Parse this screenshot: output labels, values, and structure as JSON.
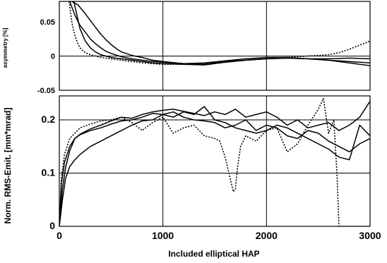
{
  "chart_data": [
    {
      "type": "line",
      "panel": "top",
      "ylabel": "asymmetry [%]",
      "xlim": [
        0,
        3000
      ],
      "ylim": [
        -0.05,
        0.08
      ],
      "yticks": [
        {
          "value": 0.05,
          "label": "0.05"
        },
        {
          "value": 0,
          "label": "0"
        },
        {
          "value": -0.05,
          "label": "-0.05"
        }
      ],
      "x_gridlines": [
        1000,
        2000
      ],
      "y_gridlines": [
        0
      ],
      "series": [
        {
          "style": "solid",
          "x": [
            100,
            150,
            200,
            250,
            300,
            350,
            400,
            450,
            500,
            600,
            700,
            800,
            900,
            1000,
            1200,
            1400,
            1600,
            1800,
            2000,
            2200,
            2400,
            2600,
            2800,
            3000
          ],
          "y": [
            0.08,
            0.06,
            0.045,
            0.035,
            0.025,
            0.018,
            0.012,
            0.007,
            0.004,
            -0.001,
            -0.004,
            -0.006,
            -0.008,
            -0.009,
            -0.011,
            -0.012,
            -0.008,
            -0.006,
            -0.004,
            -0.003,
            -0.004,
            -0.006,
            -0.008,
            -0.01
          ]
        },
        {
          "style": "solid",
          "x": [
            120,
            180,
            250,
            300,
            350,
            400,
            450,
            500,
            550,
            600,
            700,
            800,
            900,
            1000,
            1200,
            1400,
            1600,
            1800,
            2000,
            2200,
            2400,
            2600,
            2800,
            3000
          ],
          "y": [
            0.08,
            0.075,
            0.062,
            0.052,
            0.042,
            0.032,
            0.024,
            0.017,
            0.011,
            0.006,
            0.001,
            -0.002,
            -0.006,
            -0.008,
            -0.011,
            -0.01,
            -0.007,
            -0.004,
            -0.002,
            -0.002,
            -0.004,
            -0.004,
            -0.003,
            -0.004
          ]
        },
        {
          "style": "solid",
          "x": [
            140,
            200,
            250,
            300,
            350,
            400,
            500,
            600,
            700,
            800,
            900,
            1000,
            1200,
            1400,
            1600,
            1800,
            2000,
            2200,
            2400,
            2600,
            2800,
            3000
          ],
          "y": [
            0.08,
            0.04,
            0.022,
            0.012,
            0.006,
            0.002,
            -0.002,
            -0.004,
            -0.006,
            -0.008,
            -0.01,
            -0.011,
            -0.012,
            -0.013,
            -0.009,
            -0.006,
            -0.004,
            -0.003,
            -0.004,
            -0.006,
            -0.01,
            -0.014
          ]
        },
        {
          "style": "dotted",
          "x": [
            95,
            120,
            150,
            180,
            200,
            250,
            300,
            400,
            500,
            600,
            800,
            1000,
            1200,
            1400,
            1600,
            1800,
            2000,
            2200,
            2400,
            2600,
            2700,
            2800,
            2900,
            3000
          ],
          "y": [
            0.08,
            0.05,
            0.03,
            0.018,
            0.012,
            0.005,
            0.002,
            -0.002,
            -0.004,
            -0.006,
            -0.01,
            -0.012,
            -0.012,
            -0.011,
            -0.009,
            -0.006,
            -0.003,
            -0.002,
            0,
            0.002,
            0.005,
            0.01,
            0.016,
            0.022
          ]
        }
      ]
    },
    {
      "type": "line",
      "panel": "bottom",
      "xlabel": "Included elliptical HAP",
      "ylabel": "Norm. RMS-Emit. [mm*mrad]",
      "xlim": [
        0,
        3000
      ],
      "ylim": [
        0,
        0.245
      ],
      "xticks": [
        {
          "value": 0,
          "label": "0"
        },
        {
          "value": 1000,
          "label": "1000"
        },
        {
          "value": 2000,
          "label": "2000"
        },
        {
          "value": 3000,
          "label": "3000"
        }
      ],
      "yticks": [
        {
          "value": 0,
          "label": "0"
        },
        {
          "value": 0.1,
          "label": "0.1"
        },
        {
          "value": 0.2,
          "label": "0.2"
        }
      ],
      "x_gridlines": [
        1000,
        2000
      ],
      "y_gridlines": [
        0.1,
        0.2
      ],
      "series": [
        {
          "style": "solid",
          "x": [
            0,
            20,
            50,
            100,
            150,
            200,
            300,
            400,
            500,
            600,
            700,
            800,
            900,
            1000,
            1100,
            1200,
            1300,
            1400,
            1500,
            1600,
            1700,
            1800,
            1900,
            2000,
            2100,
            2200,
            2300,
            2400,
            2500,
            2600,
            2700,
            2800,
            2900,
            3000
          ],
          "y": [
            0,
            0.08,
            0.12,
            0.15,
            0.165,
            0.173,
            0.183,
            0.19,
            0.198,
            0.205,
            0.203,
            0.21,
            0.215,
            0.218,
            0.22,
            0.216,
            0.212,
            0.208,
            0.215,
            0.21,
            0.22,
            0.205,
            0.21,
            0.215,
            0.205,
            0.19,
            0.2,
            0.185,
            0.19,
            0.195,
            0.18,
            0.19,
            0.205,
            0.235
          ]
        },
        {
          "style": "solid",
          "x": [
            0,
            30,
            60,
            100,
            150,
            200,
            300,
            400,
            500,
            600,
            700,
            800,
            900,
            1000,
            1100,
            1200,
            1300,
            1400,
            1500,
            1600,
            1700,
            1800,
            1900,
            2000,
            2100,
            2200,
            2300,
            2400,
            2500,
            2600,
            2700,
            2800,
            2900,
            3000
          ],
          "y": [
            0,
            0.07,
            0.11,
            0.142,
            0.165,
            0.172,
            0.18,
            0.185,
            0.192,
            0.198,
            0.2,
            0.205,
            0.212,
            0.21,
            0.205,
            0.215,
            0.21,
            0.225,
            0.2,
            0.195,
            0.185,
            0.18,
            0.175,
            0.18,
            0.19,
            0.185,
            0.175,
            0.165,
            0.155,
            0.145,
            0.13,
            0.125,
            0.19,
            0.17
          ]
        },
        {
          "style": "solid",
          "x": [
            0,
            30,
            60,
            100,
            150,
            200,
            300,
            400,
            500,
            600,
            700,
            800,
            900,
            1000,
            1100,
            1200,
            1300,
            1400,
            1500,
            1600,
            1700,
            1800,
            1900,
            2000,
            2100,
            2200,
            2300,
            2400,
            2500,
            2600,
            2700,
            2800,
            2900,
            3000
          ],
          "y": [
            0,
            0.05,
            0.09,
            0.112,
            0.125,
            0.135,
            0.15,
            0.16,
            0.17,
            0.18,
            0.19,
            0.198,
            0.2,
            0.21,
            0.215,
            0.205,
            0.2,
            0.198,
            0.195,
            0.185,
            0.19,
            0.2,
            0.18,
            0.19,
            0.185,
            0.17,
            0.165,
            0.18,
            0.175,
            0.16,
            0.15,
            0.14,
            0.155,
            0.165
          ]
        },
        {
          "style": "dotted",
          "x": [
            0,
            20,
            50,
            100,
            150,
            200,
            300,
            400,
            500,
            600,
            700,
            800,
            900,
            1000,
            1100,
            1200,
            1300,
            1400,
            1500,
            1550,
            1600,
            1650,
            1680,
            1700,
            1720,
            1750,
            1800,
            1900,
            2000,
            2100,
            2200,
            2300,
            2400,
            2500,
            2550,
            2600,
            2650,
            2680,
            2700,
            2800,
            2900,
            3000
          ],
          "y": [
            0,
            0.09,
            0.135,
            0.165,
            0.175,
            0.185,
            0.192,
            0.198,
            0.2,
            0.205,
            0.195,
            0.18,
            0.195,
            0.205,
            0.175,
            0.185,
            0.19,
            0.17,
            0.165,
            0.16,
            0.13,
            0.09,
            0.065,
            0.07,
            0.11,
            0.15,
            0.17,
            0.16,
            0.18,
            0.185,
            0.14,
            0.155,
            0.19,
            0.22,
            0.24,
            0.175,
            0.2,
            0.1,
            0,
            0,
            0,
            0
          ]
        }
      ]
    }
  ]
}
